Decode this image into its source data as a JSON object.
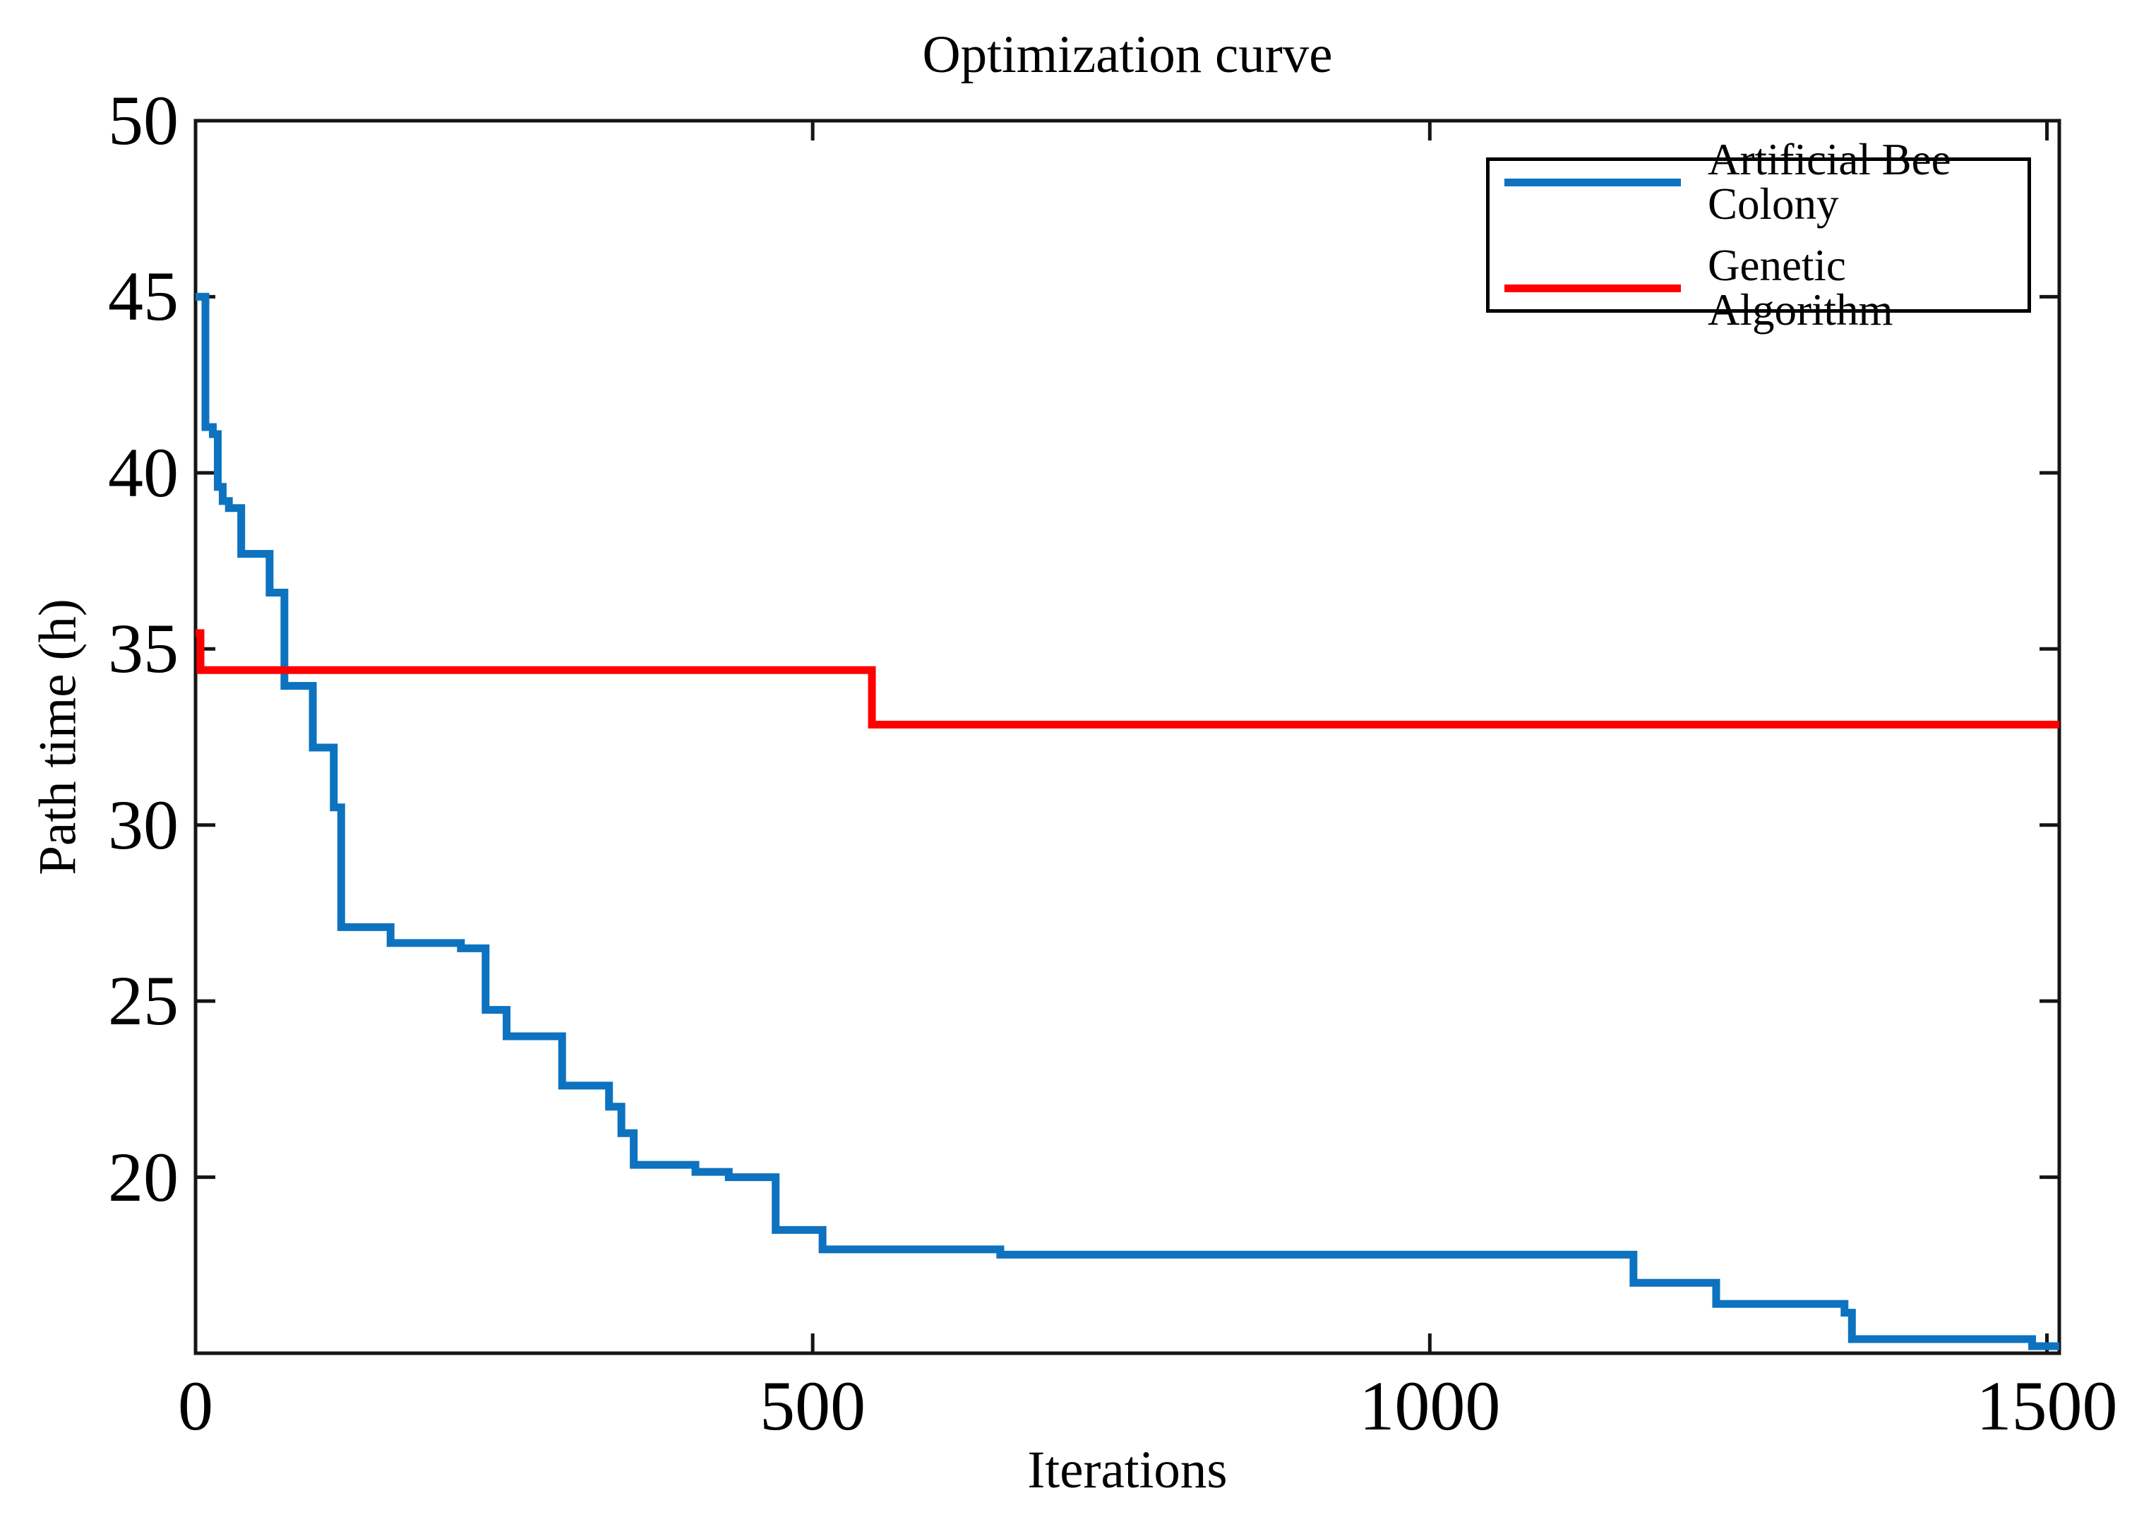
{
  "title": "Optimization curve",
  "axes": {
    "xlabel": "Iterations",
    "ylabel": "Path time (h)",
    "x_tick_labels": [
      "0",
      "500",
      "1000",
      "1500"
    ],
    "y_tick_labels": [
      "50",
      "45",
      "40",
      "35",
      "30",
      "25",
      "20"
    ]
  },
  "legend": {
    "entries": [
      {
        "label": "Artificial Bee Colony",
        "color": "#0d72bf"
      },
      {
        "label": "Genetic Algorithm",
        "color": "#ff0000"
      }
    ]
  },
  "colors": {
    "axis": "#151515",
    "background": "#ffffff",
    "abc_blue": "#0d72bf",
    "ga_red": "#ff0000"
  },
  "chart_data": {
    "type": "line",
    "step": "post",
    "title": "Optimization curve",
    "xlabel": "Iterations",
    "ylabel": "Path time (h)",
    "xlim": [
      0,
      1510
    ],
    "ylim": [
      15,
      50
    ],
    "x_ticks": [
      0,
      500,
      1000,
      1500
    ],
    "y_ticks": [
      50,
      45,
      40,
      35,
      30,
      25,
      20
    ],
    "grid": false,
    "legend_position": "upper right",
    "series": [
      {
        "name": "Artificial Bee Colony",
        "color": "#0d72bf",
        "points": [
          [
            0,
            45.0
          ],
          [
            8,
            41.3
          ],
          [
            14,
            41.1
          ],
          [
            18,
            39.6
          ],
          [
            22,
            39.2
          ],
          [
            27,
            39.0
          ],
          [
            37,
            37.7
          ],
          [
            60,
            36.6
          ],
          [
            72,
            33.95
          ],
          [
            95,
            32.2
          ],
          [
            112,
            30.5
          ],
          [
            118,
            27.1
          ],
          [
            158,
            26.65
          ],
          [
            215,
            26.5
          ],
          [
            235,
            24.75
          ],
          [
            252,
            24.0
          ],
          [
            297,
            22.6
          ],
          [
            335,
            22.0
          ],
          [
            345,
            21.25
          ],
          [
            355,
            20.35
          ],
          [
            405,
            20.15
          ],
          [
            432,
            20.0
          ],
          [
            470,
            18.5
          ],
          [
            508,
            17.95
          ],
          [
            652,
            17.8
          ],
          [
            1165,
            17.0
          ],
          [
            1232,
            16.4
          ],
          [
            1336,
            16.15
          ],
          [
            1342,
            15.4
          ],
          [
            1488,
            15.2
          ],
          [
            1510,
            15.2
          ]
        ]
      },
      {
        "name": "Genetic Algorithm",
        "color": "#ff0000",
        "points": [
          [
            0,
            35.45
          ],
          [
            4,
            34.4
          ],
          [
            548,
            32.85
          ],
          [
            1510,
            32.85
          ]
        ]
      }
    ]
  }
}
